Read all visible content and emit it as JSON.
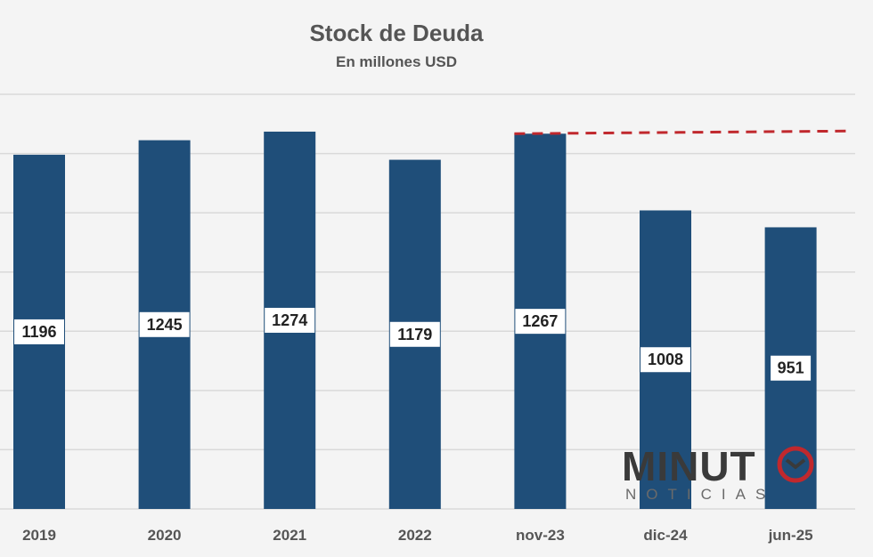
{
  "chart_data": {
    "type": "bar",
    "title": "Stock de Deuda",
    "subtitle": "En millones USD",
    "xlabel": "",
    "ylabel": "",
    "categories": [
      "2019",
      "2020",
      "2021",
      "2022",
      "nov-23",
      "dic-24",
      "jun-25"
    ],
    "series": [
      {
        "values": [
          1196,
          1245,
          1274,
          1179,
          1267,
          1008,
          951
        ],
        "color": "#1f4e79"
      }
    ],
    "ylim": [
      0,
      1400
    ],
    "grid": true,
    "reference_line": {
      "value": 1267,
      "from_category": "nov-23",
      "style": "dashed",
      "color": "#c0282d"
    },
    "data_label_style": {
      "background": "#ffffff",
      "color": "#222222"
    }
  },
  "watermark": {
    "text_main": "MINUT",
    "text_sub": "NOTICIAS",
    "icon": "clock-icon",
    "accent": "#c0282d"
  }
}
